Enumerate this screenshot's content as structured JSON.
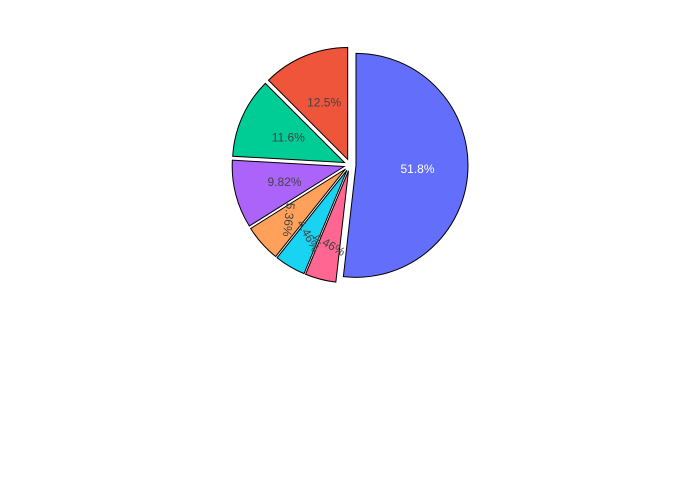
{
  "chart_data": {
    "type": "pie",
    "title": "",
    "slices": [
      {
        "label": "51.8%",
        "value": 51.8,
        "color": "#636efa",
        "text_color": "#ffffff",
        "pulled": true
      },
      {
        "label": "4.46%",
        "value": 4.46,
        "color": "#ff6692",
        "text_color": "#444444",
        "pulled": true
      },
      {
        "label": "4.46%",
        "value": 4.46,
        "color": "#19d3f3",
        "text_color": "#444444",
        "pulled": true
      },
      {
        "label": "5.36%",
        "value": 5.36,
        "color": "#ffa15a",
        "text_color": "#444444",
        "pulled": true
      },
      {
        "label": "9.82%",
        "value": 9.82,
        "color": "#ab63fa",
        "text_color": "#444444",
        "pulled": true
      },
      {
        "label": "11.6%",
        "value": 11.6,
        "color": "#00cc96",
        "text_color": "#444444",
        "pulled": true
      },
      {
        "label": "12.5%",
        "value": 12.5,
        "color": "#ef553b",
        "text_color": "#444444",
        "pulled": true
      }
    ],
    "direction": "clockwise",
    "start": "top",
    "legend": "none",
    "stroke_color": "#000000"
  }
}
